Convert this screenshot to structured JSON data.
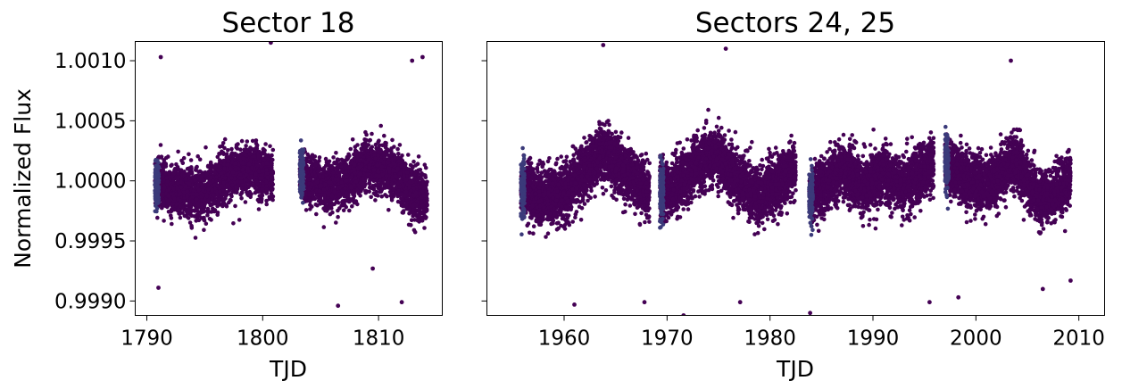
{
  "chart_data": [
    {
      "type": "scatter",
      "title": "Sector 18",
      "xlabel": "TJD",
      "ylabel": "Normalized Flux",
      "xlim": [
        1789.0,
        1815.5
      ],
      "ylim": [
        0.99888,
        1.00116
      ],
      "xticks": [
        1790,
        1800,
        1810
      ],
      "xtick_labels": [
        "1790",
        "1800",
        "1810"
      ],
      "yticks": [
        0.999,
        0.9995,
        1.0,
        1.0005,
        1.001
      ],
      "ytick_labels": [
        "0.9990",
        "0.9995",
        "1.0000",
        "1.0005",
        "1.0010"
      ],
      "marker_color": "#440154",
      "segments": [
        {
          "x_start": 1790.7,
          "x_end": 1800.9,
          "mean_flux": 1.00001,
          "amplitude": 0.0001,
          "scatter": 0.00018,
          "trend": [
            [
              1790.7,
              0.99997
            ],
            [
              1793,
              0.99992
            ],
            [
              1795,
              0.9999
            ],
            [
              1797,
              1.00005
            ],
            [
              1799,
              1.0001
            ],
            [
              1800.9,
              1.00005
            ]
          ]
        },
        {
          "x_start": 1803.2,
          "x_end": 1814.2,
          "mean_flux": 1.00001,
          "amplitude": 0.0001,
          "scatter": 0.00018,
          "trend": [
            [
              1803.2,
              1.00005
            ],
            [
              1805,
              0.99995
            ],
            [
              1807,
              0.99998
            ],
            [
              1809,
              1.00013
            ],
            [
              1811,
              1.00008
            ],
            [
              1813,
              0.9999
            ],
            [
              1814.2,
              0.99985
            ]
          ]
        }
      ],
      "outliers": [
        [
          1791.2,
          1.00103
        ],
        [
          1800.7,
          1.00115
        ],
        [
          1812.9,
          1.001
        ],
        [
          1813.8,
          1.00103
        ],
        [
          1791.0,
          0.99911
        ],
        [
          1806.5,
          0.99896
        ],
        [
          1812.0,
          0.99899
        ],
        [
          1809.5,
          0.99927
        ]
      ]
    },
    {
      "type": "scatter",
      "title": "Sectors 24, 25",
      "xlabel": "TJD",
      "ylabel": "",
      "xlim": [
        1952.5,
        2012.5
      ],
      "ylim": [
        0.99888,
        1.00116
      ],
      "xticks": [
        1960,
        1970,
        1980,
        1990,
        2000,
        2010
      ],
      "xtick_labels": [
        "1960",
        "1970",
        "1980",
        "1990",
        "2000",
        "2010"
      ],
      "yticks": [
        0.999,
        0.9995,
        1.0,
        1.0005,
        1.001
      ],
      "ytick_labels": [],
      "marker_color": "#440154",
      "segments": [
        {
          "x_start": 1955.8,
          "x_end": 1968.3,
          "mean_flux": 1.00002,
          "scatter": 0.0002,
          "trend": [
            [
              1955.8,
              0.99995
            ],
            [
              1958,
              0.99985
            ],
            [
              1960,
              0.9999
            ],
            [
              1962,
              1.0001
            ],
            [
              1964,
              1.00025
            ],
            [
              1966,
              1.00005
            ],
            [
              1968.3,
              0.9999
            ]
          ]
        },
        {
          "x_start": 1969.3,
          "x_end": 1982.5,
          "mean_flux": 1.00003,
          "scatter": 0.0002,
          "trend": [
            [
              1969.3,
              0.9999
            ],
            [
              1971,
              0.99995
            ],
            [
              1973,
              1.00015
            ],
            [
              1975,
              1.0002
            ],
            [
              1977,
              1.0
            ],
            [
              1979,
              0.99985
            ],
            [
              1981,
              1.0
            ],
            [
              1982.5,
              1.0001
            ]
          ]
        },
        {
          "x_start": 1983.8,
          "x_end": 1995.9,
          "mean_flux": 1.00001,
          "scatter": 0.0002,
          "trend": [
            [
              1983.8,
              0.99985
            ],
            [
              1985,
              0.99995
            ],
            [
              1987,
              1.0001
            ],
            [
              1989,
              0.99995
            ],
            [
              1991,
              1.00005
            ],
            [
              1993,
              0.99995
            ],
            [
              1995.9,
              1.00015
            ]
          ]
        },
        {
          "x_start": 1997.0,
          "x_end": 2009.2,
          "mean_flux": 1.00001,
          "scatter": 0.0002,
          "trend": [
            [
              1997.0,
              1.00015
            ],
            [
              1999,
              1.0
            ],
            [
              2001,
              0.99995
            ],
            [
              2003,
              1.0001
            ],
            [
              2004,
              1.00015
            ],
            [
              2006,
              0.99985
            ],
            [
              2008,
              0.9999
            ],
            [
              2009.2,
              1.00005
            ]
          ]
        }
      ],
      "outliers": [
        [
          1963.8,
          1.00113
        ],
        [
          1975.7,
          1.0011
        ],
        [
          1971.6,
          0.99888
        ],
        [
          1983.9,
          0.9989
        ],
        [
          1998.3,
          0.99903
        ],
        [
          2006.5,
          0.9991
        ],
        [
          1961.0,
          0.99897
        ],
        [
          1967.8,
          0.99899
        ],
        [
          1977.1,
          0.99899
        ],
        [
          1995.5,
          0.99899
        ],
        [
          2009.2,
          0.99917
        ],
        [
          2003.4,
          1.001
        ]
      ]
    }
  ]
}
